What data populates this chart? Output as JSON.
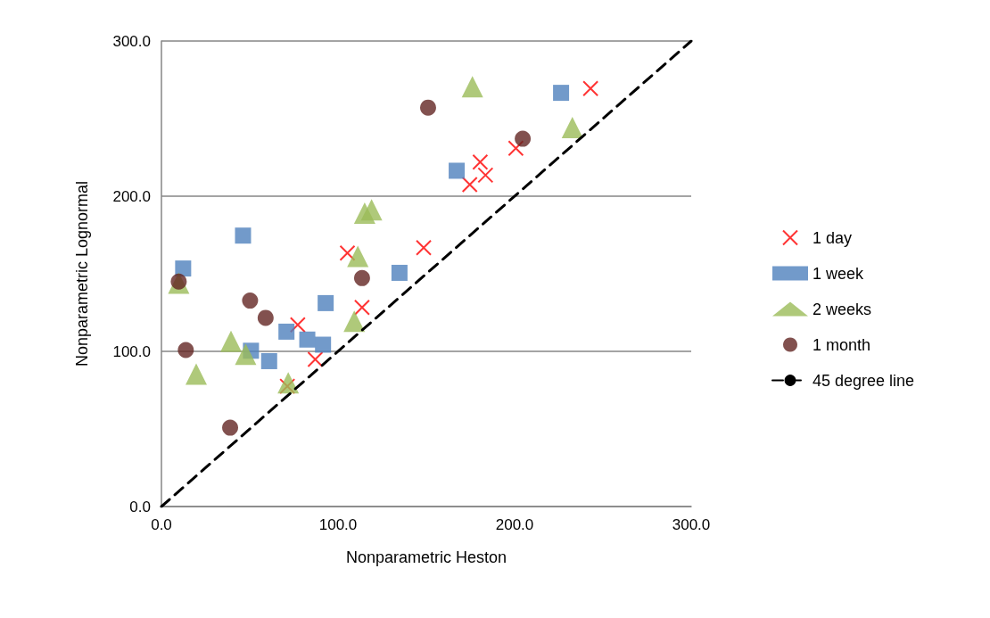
{
  "chart_data": {
    "type": "scatter",
    "xlabel": "Nonparametric Heston",
    "ylabel": "Nonparametric Lognormal",
    "xlim": [
      0,
      300
    ],
    "ylim": [
      0,
      300
    ],
    "xticks": [
      {
        "value": 0,
        "label": "0.0"
      },
      {
        "value": 100,
        "label": "100.0"
      },
      {
        "value": 200,
        "label": "200.0"
      },
      {
        "value": 300,
        "label": "300.0"
      }
    ],
    "yticks": [
      {
        "value": 0,
        "label": "0.0"
      },
      {
        "value": 100,
        "label": "100.0"
      },
      {
        "value": 200,
        "label": "200.0"
      },
      {
        "value": 300,
        "label": "300.0"
      }
    ],
    "grid": "y",
    "legend": "right",
    "series": [
      {
        "name": "1 day",
        "color": "#ff0000",
        "marker": "cross",
        "x": [
          71.3,
          77.2,
          87.1,
          105.3,
          113.6,
          148.5,
          174.6,
          180.5,
          183.5,
          200.7,
          243
        ],
        "values": [
          77.5,
          117.1,
          94.8,
          163.4,
          128.3,
          166.8,
          207.5,
          222,
          213.6,
          230.9,
          269.4
        ]
      },
      {
        "name": "1 week",
        "color": "#4f81bd",
        "marker": "square",
        "x": [
          12.3,
          46.2,
          50.7,
          61,
          70.8,
          82.6,
          91.5,
          93,
          134.8,
          167.2,
          226.3
        ],
        "values": [
          153.4,
          174.6,
          100.4,
          93.7,
          112.7,
          107.6,
          104.3,
          131.1,
          150.6,
          216.4,
          266.6
        ]
      },
      {
        "name": "2 weeks",
        "color": "#9bbb59",
        "marker": "triangle",
        "x": [
          9.8,
          19.7,
          39.4,
          47.7,
          71.8,
          109.2,
          111.2,
          115.1,
          119,
          176.1,
          232.7
        ],
        "values": [
          143.9,
          85.3,
          106.5,
          98.2,
          79.8,
          119.4,
          161.2,
          189.1,
          191.3,
          270.5,
          244.3
        ]
      },
      {
        "name": "1 month",
        "color": "#632523",
        "marker": "circle",
        "x": [
          9.8,
          13.8,
          38.9,
          50.2,
          59,
          113.6,
          151,
          204.6
        ],
        "values": [
          145,
          100.9,
          50.8,
          132.7,
          121.6,
          147.2,
          257.1,
          237
        ]
      },
      {
        "name": "45 degree line",
        "type": "line",
        "color": "#000000",
        "marker": "none",
        "line_style": "dashed",
        "x": [
          0,
          300
        ],
        "values": [
          0,
          300
        ]
      }
    ]
  }
}
